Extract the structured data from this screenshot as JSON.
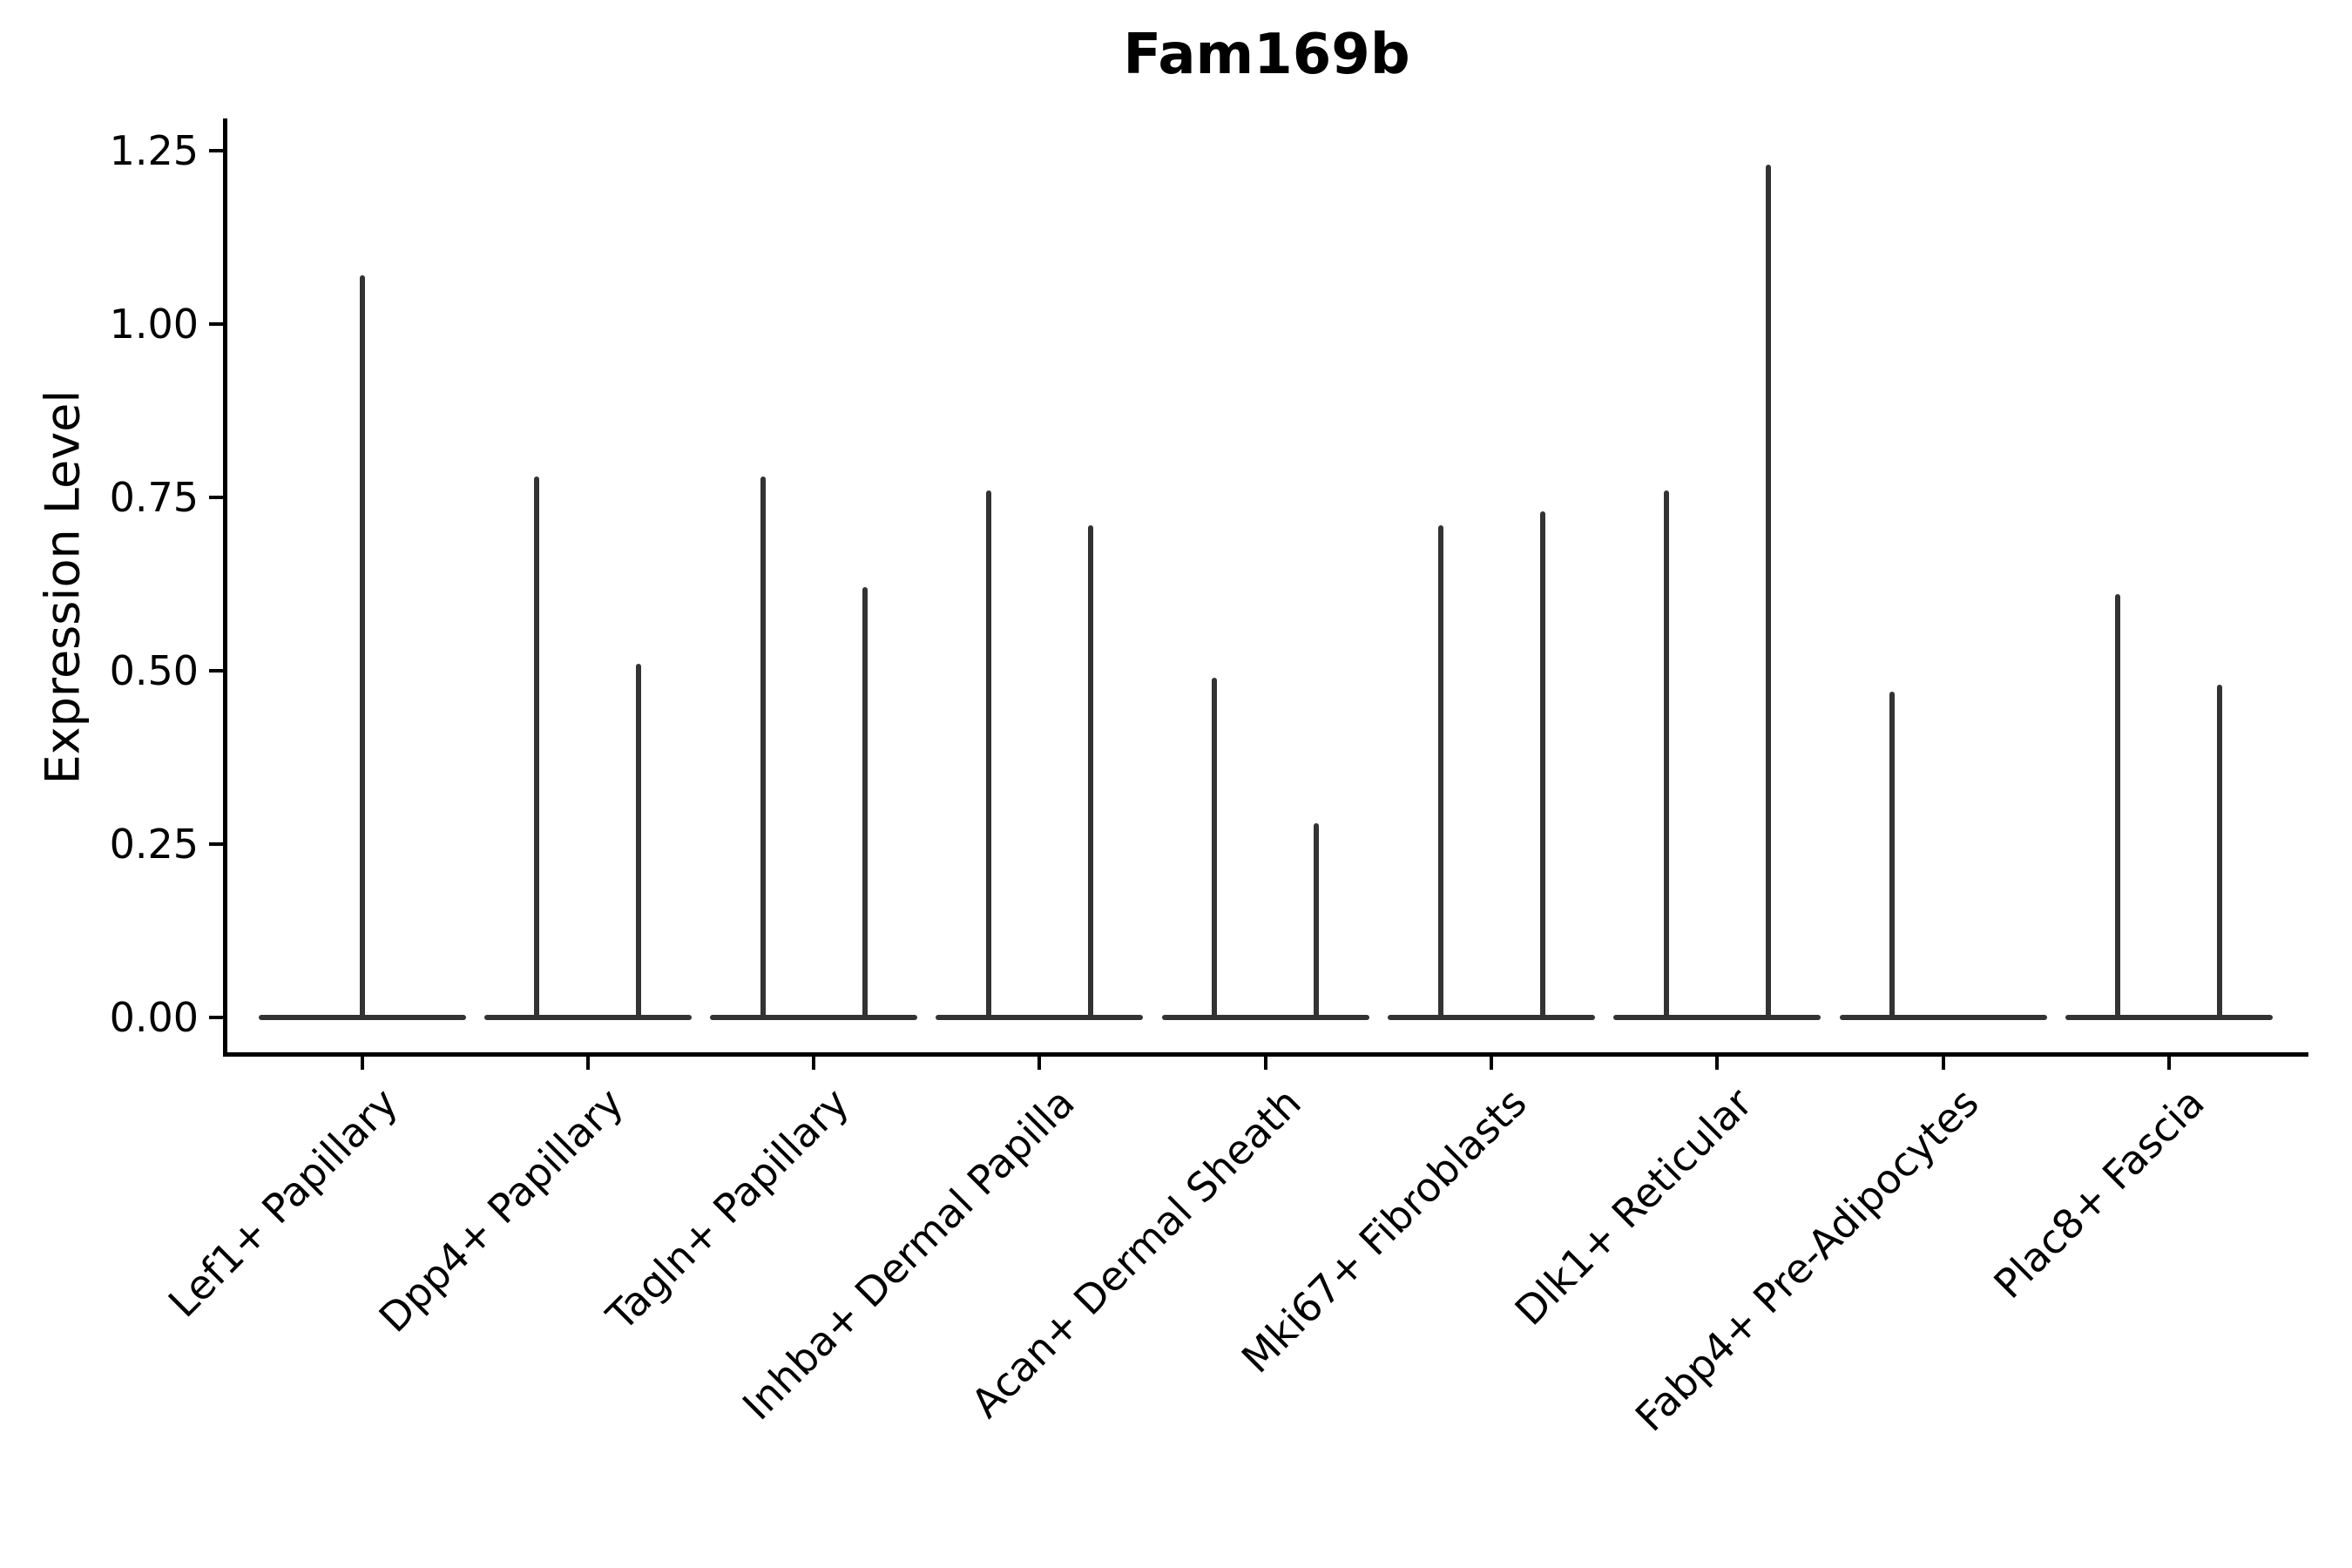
{
  "figure": {
    "title": "Fam169b",
    "y_axis": {
      "label": "Expression Level",
      "tick_labels": [
        "0.00",
        "0.25",
        "0.50",
        "0.75",
        "1.00",
        "1.25"
      ]
    }
  },
  "chart_data": {
    "type": "violin",
    "title": "Fam169b",
    "xlabel": "",
    "ylabel": "Expression Level",
    "yticks": [
      0.0,
      0.25,
      0.5,
      0.75,
      1.0,
      1.25
    ],
    "ytick_labels": [
      "0.00",
      "0.25",
      "0.50",
      "0.75",
      "1.00",
      "1.25"
    ],
    "ylim": [
      -0.06,
      1.3
    ],
    "grid": false,
    "legend_position": "none",
    "categories": [
      "Lef1+ Papillary",
      "Dpp4+ Papillary",
      "Tagln+ Papillary",
      "Inhba+ Dermal Papilla",
      "Acan+ Dermal Sheath",
      "Mki67+ Fibroblasts",
      "Dlk1+ Reticular",
      "Fabp4+ Pre-Adipocytes",
      "Plac8+ Fascia"
    ],
    "description": "Thin spike-shaped violins with flat bases at expression 0; each category shows one or two violins (left/right of category center); peak = maximum expression level reached by each spike.",
    "series": [
      {
        "category": "Lef1+ Papillary",
        "violins": [
          {
            "position": "center",
            "peak": 1.07
          }
        ]
      },
      {
        "category": "Dpp4+ Papillary",
        "violins": [
          {
            "position": "left",
            "peak": 0.78
          },
          {
            "position": "right",
            "peak": 0.51
          }
        ]
      },
      {
        "category": "Tagln+ Papillary",
        "violins": [
          {
            "position": "left",
            "peak": 0.78
          },
          {
            "position": "right",
            "peak": 0.62
          }
        ]
      },
      {
        "category": "Inhba+ Dermal Papilla",
        "violins": [
          {
            "position": "left",
            "peak": 0.76
          },
          {
            "position": "right",
            "peak": 0.71
          }
        ]
      },
      {
        "category": "Acan+ Dermal Sheath",
        "violins": [
          {
            "position": "left",
            "peak": 0.49
          },
          {
            "position": "right",
            "peak": 0.28
          }
        ]
      },
      {
        "category": "Mki67+ Fibroblasts",
        "violins": [
          {
            "position": "left",
            "peak": 0.71
          },
          {
            "position": "right",
            "peak": 0.73
          }
        ]
      },
      {
        "category": "Dlk1+ Reticular",
        "violins": [
          {
            "position": "left",
            "peak": 0.76
          },
          {
            "position": "right",
            "peak": 1.23
          }
        ]
      },
      {
        "category": "Fabp4+ Pre-Adipocytes",
        "violins": [
          {
            "position": "left",
            "peak": 0.47
          }
        ]
      },
      {
        "category": "Plac8+ Fascia",
        "violins": [
          {
            "position": "left",
            "peak": 0.61
          },
          {
            "position": "right",
            "peak": 0.48
          }
        ]
      }
    ],
    "colors": {
      "violin": "#333333",
      "axis": "#000000",
      "text": "#000000",
      "background": "#ffffff"
    }
  }
}
